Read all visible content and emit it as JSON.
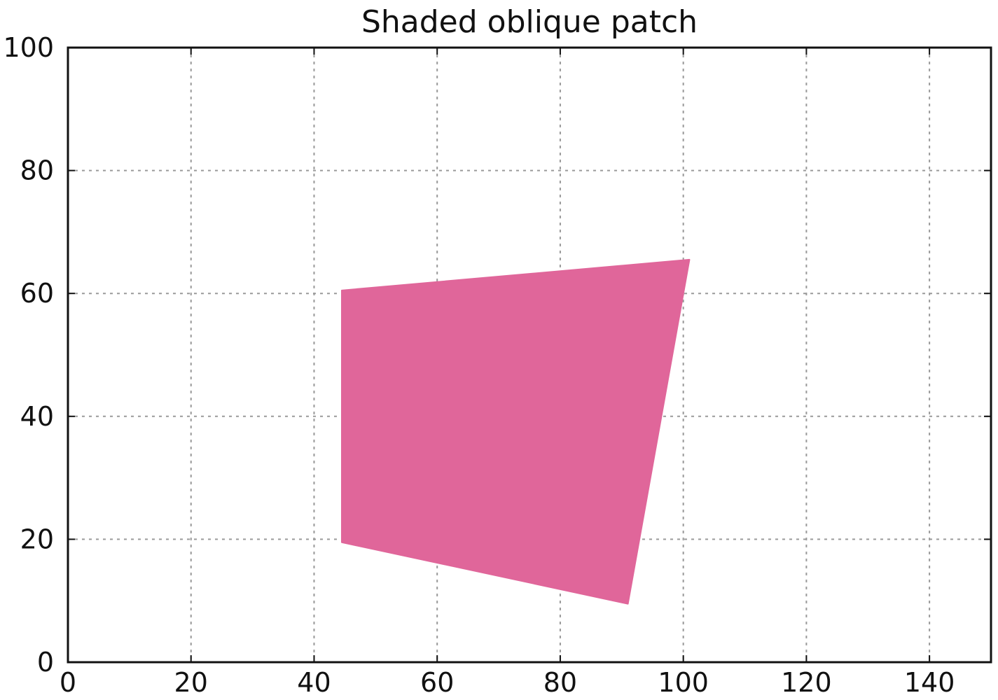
{
  "chart_data": {
    "type": "area",
    "title": "Shaded oblique patch",
    "xlabel": "",
    "ylabel": "",
    "xlim": [
      0,
      150
    ],
    "ylim": [
      0,
      100
    ],
    "xticks": [
      0,
      20,
      40,
      60,
      80,
      100,
      120,
      140
    ],
    "yticks": [
      0,
      20,
      40,
      60,
      80,
      100
    ],
    "grid": true,
    "patch": {
      "color": "#e0669a",
      "vertices": [
        [
          44.5,
          60.5
        ],
        [
          101,
          65.5
        ],
        [
          91,
          9.5
        ],
        [
          44.5,
          19.5
        ]
      ]
    }
  }
}
